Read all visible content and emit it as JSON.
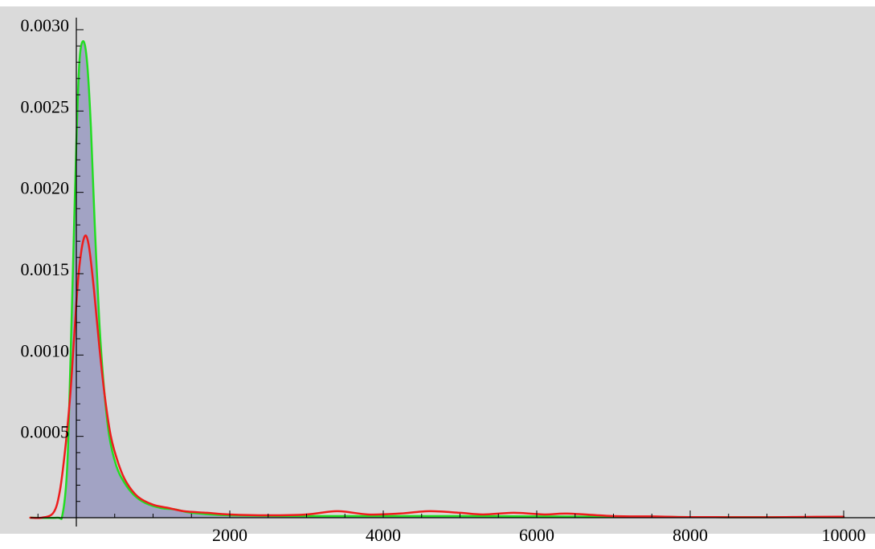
{
  "chart_data": {
    "type": "area",
    "title": "",
    "xlabel": "",
    "ylabel": "",
    "xlim": [
      -600,
      10100
    ],
    "ylim": [
      0,
      0.003
    ],
    "grid": false,
    "legend": "none",
    "background_color": "#dadada",
    "x_ticks": [
      2000,
      4000,
      6000,
      8000,
      10000
    ],
    "x_tick_labels": [
      "2000",
      "4000",
      "6000",
      "8000",
      "10000"
    ],
    "y_ticks": [
      0.0005,
      0.001,
      0.0015,
      0.002,
      0.0025,
      0.003
    ],
    "y_tick_labels": [
      "0.0005",
      "0.0010",
      "0.0015",
      "0.0020",
      "0.0025",
      "0.0030"
    ],
    "series": [
      {
        "color": "#22dd22",
        "fill": "#a2a3c4",
        "points": [
          [
            -600,
            0
          ],
          [
            -250,
            0
          ],
          [
            -180,
            2e-05
          ],
          [
            -120,
            0.0003
          ],
          [
            -80,
            0.0009
          ],
          [
            -40,
            0.0016
          ],
          [
            0,
            0.0023
          ],
          [
            40,
            0.0028
          ],
          [
            90,
            0.00293
          ],
          [
            140,
            0.0028
          ],
          [
            190,
            0.0024
          ],
          [
            240,
            0.0018
          ],
          [
            300,
            0.0012
          ],
          [
            360,
            0.0008
          ],
          [
            430,
            0.0005
          ],
          [
            520,
            0.00032
          ],
          [
            620,
            0.00022
          ],
          [
            750,
            0.00014
          ],
          [
            900,
            9e-05
          ],
          [
            1100,
            6e-05
          ],
          [
            1300,
            5e-05
          ],
          [
            1500,
            3e-05
          ],
          [
            2000,
            1.5e-05
          ],
          [
            3000,
            1e-05
          ],
          [
            4000,
            1e-05
          ],
          [
            5000,
            1e-05
          ],
          [
            6000,
            8e-06
          ],
          [
            7000,
            6e-06
          ],
          [
            8000,
            4e-06
          ],
          [
            9000,
            3e-06
          ],
          [
            10000,
            3e-06
          ]
        ]
      },
      {
        "color": "#ee1c1c",
        "points": [
          [
            -600,
            0
          ],
          [
            -450,
            0
          ],
          [
            -300,
            3e-05
          ],
          [
            -220,
            0.00015
          ],
          [
            -150,
            0.0004
          ],
          [
            -80,
            0.00075
          ],
          [
            -30,
            0.0011
          ],
          [
            30,
            0.0015
          ],
          [
            100,
            0.00172
          ],
          [
            160,
            0.00168
          ],
          [
            230,
            0.0014
          ],
          [
            300,
            0.00105
          ],
          [
            370,
            0.00075
          ],
          [
            450,
            0.0005
          ],
          [
            550,
            0.00033
          ],
          [
            650,
            0.00022
          ],
          [
            800,
            0.00013
          ],
          [
            1000,
            8e-05
          ],
          [
            1200,
            6e-05
          ],
          [
            1400,
            4e-05
          ],
          [
            1700,
            3e-05
          ],
          [
            2000,
            2e-05
          ],
          [
            2500,
            1.5e-05
          ],
          [
            3000,
            2e-05
          ],
          [
            3400,
            4e-05
          ],
          [
            3800,
            2e-05
          ],
          [
            4200,
            2.5e-05
          ],
          [
            4600,
            4e-05
          ],
          [
            5000,
            3e-05
          ],
          [
            5300,
            2e-05
          ],
          [
            5700,
            3e-05
          ],
          [
            6100,
            2e-05
          ],
          [
            6400,
            2.5e-05
          ],
          [
            7000,
            1e-05
          ],
          [
            7500,
            8e-06
          ],
          [
            8000,
            4e-06
          ],
          [
            9000,
            3e-06
          ],
          [
            9500,
            5e-06
          ],
          [
            10000,
            6e-06
          ]
        ]
      }
    ]
  }
}
